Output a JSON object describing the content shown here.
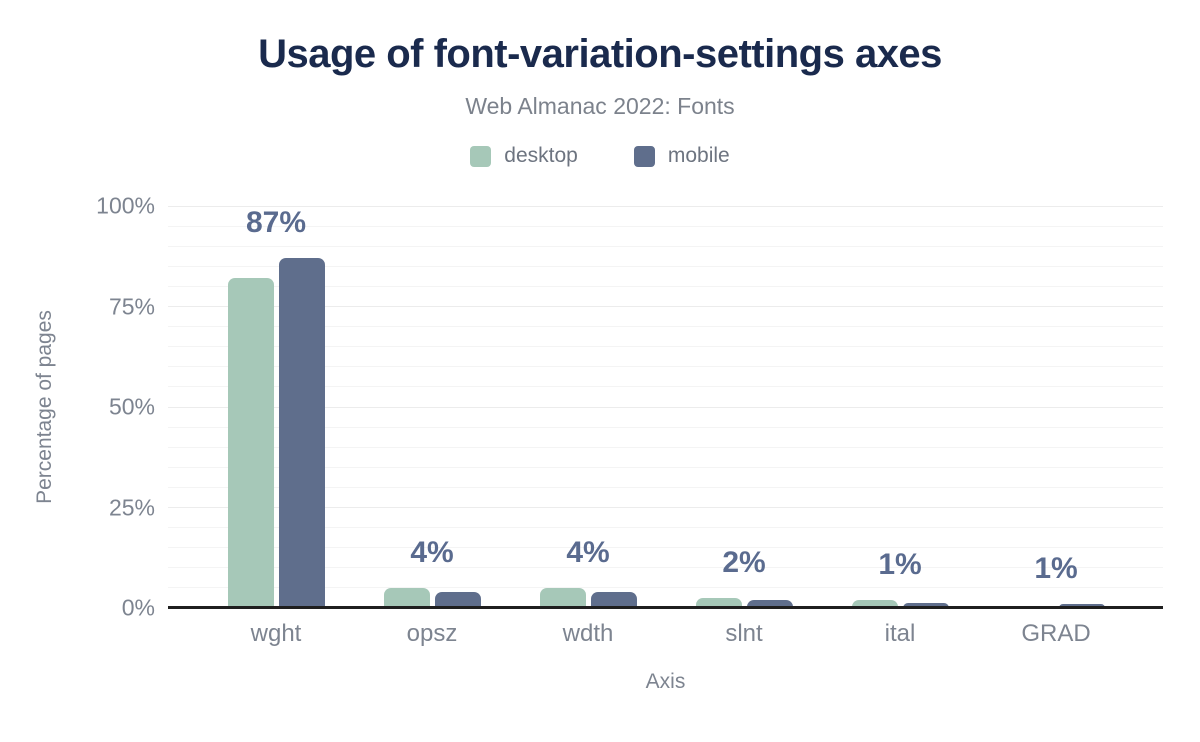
{
  "header": {
    "title": "Usage of font-variation-settings axes",
    "subtitle": "Web Almanac 2022: Fonts"
  },
  "legend": {
    "items": [
      {
        "label": "desktop",
        "color": "#a6c8b8"
      },
      {
        "label": "mobile",
        "color": "#5f6e8c"
      }
    ]
  },
  "chart_data": {
    "type": "bar",
    "title": "Usage of font-variation-settings axes",
    "subtitle": "Web Almanac 2022: Fonts",
    "categories": [
      "wght",
      "opsz",
      "wdth",
      "slnt",
      "ital",
      "GRAD"
    ],
    "series": [
      {
        "name": "desktop",
        "color": "#a6c8b8",
        "values": [
          82,
          5,
          5,
          2.5,
          2,
          0.6
        ]
      },
      {
        "name": "mobile",
        "color": "#5f6e8c",
        "values": [
          87,
          4,
          4,
          2,
          1.2,
          1
        ]
      }
    ],
    "bar_labels": [
      "87%",
      "4%",
      "4%",
      "2%",
      "1%",
      "1%"
    ],
    "xlabel": "Axis",
    "ylabel": "Percentage of pages",
    "y_ticks": [
      {
        "label": "0%",
        "value": 0
      },
      {
        "label": "25%",
        "value": 25
      },
      {
        "label": "50%",
        "value": 50
      },
      {
        "label": "75%",
        "value": 75
      },
      {
        "label": "100%",
        "value": 100
      }
    ],
    "ylim": [
      0,
      100
    ],
    "grid": "horizontal, minor every 5%, major every 25%",
    "legend_position": "top",
    "label_color": "#5a6b8f",
    "axis_text_color": "#7d8490",
    "title_color": "#1a2a4d",
    "baseline_color": "#1f1f1f"
  }
}
